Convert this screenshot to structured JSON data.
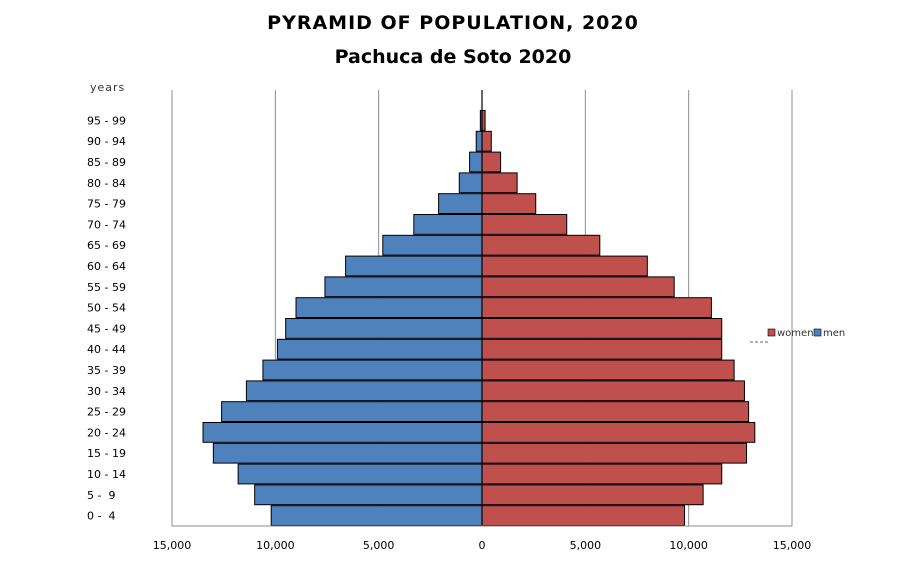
{
  "title": "PYRAMID OF POPULATION, 2020",
  "subtitle": "Pachuca de Soto 2020",
  "chart_data": {
    "type": "bar",
    "orientation": "horizontal-pyramid",
    "title": "PYRAMID OF POPULATION, 2020",
    "subtitle": "Pachuca de Soto 2020",
    "ylabel": "years",
    "xlabel": "",
    "xlim": [
      -15000,
      15000
    ],
    "xticks": [
      -15000,
      -10000,
      -5000,
      0,
      5000,
      10000,
      15000
    ],
    "xtick_labels": [
      "15,000",
      "10,000",
      "5,000",
      "0",
      "5,000",
      "10,000",
      "15,000"
    ],
    "grid": "vertical",
    "legend": "right",
    "categories": [
      "0 -  4",
      "5 -  9",
      "10 - 14",
      "15 - 19",
      "20 - 24",
      "25 - 29",
      "30 - 34",
      "35 - 39",
      "40 - 44",
      "45 - 49",
      "50 - 54",
      "55 - 59",
      "60 - 64",
      "65 - 69",
      "70 - 74",
      "75 - 79",
      "80 - 84",
      "85 - 89",
      "90 - 94",
      "95 - 99"
    ],
    "series": [
      {
        "name": "men",
        "color": "#4f81bd",
        "side": "left",
        "values": [
          10200,
          11000,
          11800,
          13000,
          13500,
          12600,
          11400,
          10600,
          9900,
          9500,
          9000,
          7600,
          6600,
          4800,
          3300,
          2100,
          1100,
          600,
          280,
          80
        ]
      },
      {
        "name": "women",
        "color": "#c0504d",
        "side": "right",
        "values": [
          9800,
          10700,
          11600,
          12800,
          13200,
          12900,
          12700,
          12200,
          11600,
          11600,
          11100,
          9300,
          8000,
          5700,
          4100,
          2600,
          1700,
          900,
          450,
          150
        ]
      }
    ]
  }
}
